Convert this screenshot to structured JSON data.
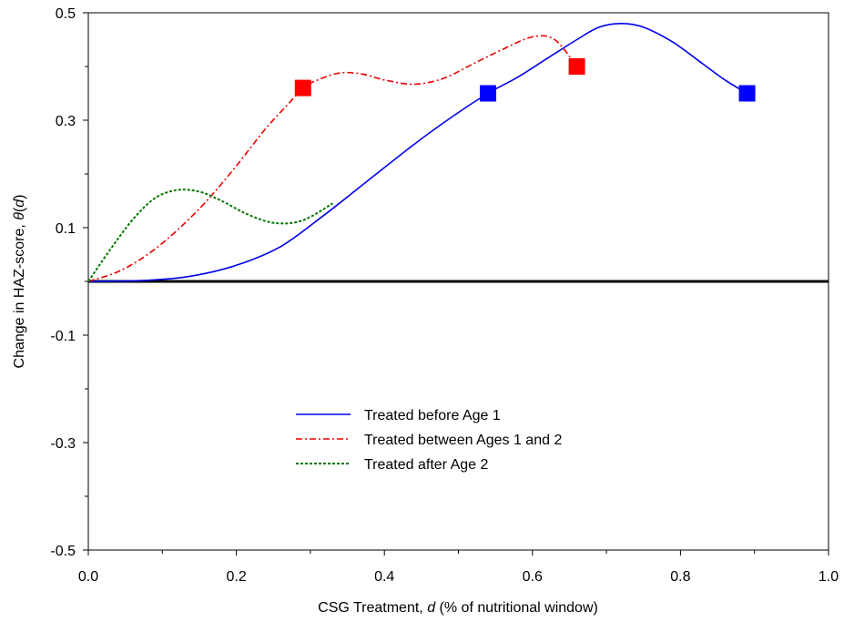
{
  "chart_data": {
    "type": "line",
    "xlabel_parts": [
      "CSG Treatment, ",
      "d",
      " (% of nutritional window)"
    ],
    "ylabel_parts": [
      "Change in HAZ-score, ",
      "θ",
      "(",
      "d",
      ")"
    ],
    "xlim": [
      0.0,
      1.0
    ],
    "ylim": [
      -0.5,
      0.5
    ],
    "x_ticks": [
      "0.0",
      "0.2",
      "0.4",
      "0.6",
      "0.8",
      "1.0"
    ],
    "y_ticks": [
      "0.5",
      "0.3",
      "0.1",
      "-0.1",
      "-0.3",
      "-0.5"
    ],
    "x_tick_values": [
      0.0,
      0.2,
      0.4,
      0.6,
      0.8,
      1.0
    ],
    "y_tick_values": [
      0.5,
      0.3,
      0.1,
      -0.1,
      -0.3,
      -0.5
    ],
    "reference_line_y": 0.0,
    "legend_position": "center",
    "series": [
      {
        "name": "Treated before Age 1",
        "color": "#0000ee",
        "dash": "solid",
        "points": [
          [
            0.0,
            0.0
          ],
          [
            0.08,
            0.002
          ],
          [
            0.14,
            0.01
          ],
          [
            0.2,
            0.03
          ],
          [
            0.26,
            0.065
          ],
          [
            0.32,
            0.125
          ],
          [
            0.38,
            0.19
          ],
          [
            0.44,
            0.255
          ],
          [
            0.49,
            0.305
          ],
          [
            0.54,
            0.35
          ],
          [
            0.58,
            0.38
          ],
          [
            0.62,
            0.415
          ],
          [
            0.66,
            0.45
          ],
          [
            0.69,
            0.473
          ],
          [
            0.72,
            0.48
          ],
          [
            0.75,
            0.473
          ],
          [
            0.79,
            0.445
          ],
          [
            0.83,
            0.405
          ],
          [
            0.86,
            0.375
          ],
          [
            0.89,
            0.35
          ]
        ],
        "markers": [
          [
            0.54,
            0.35
          ],
          [
            0.89,
            0.35
          ]
        ]
      },
      {
        "name": "Treated between Ages 1 and 2",
        "color": "#ee0000",
        "dash": "dashdot",
        "points": [
          [
            0.0,
            0.0
          ],
          [
            0.04,
            0.018
          ],
          [
            0.08,
            0.05
          ],
          [
            0.12,
            0.095
          ],
          [
            0.16,
            0.15
          ],
          [
            0.2,
            0.215
          ],
          [
            0.24,
            0.285
          ],
          [
            0.27,
            0.33
          ],
          [
            0.29,
            0.36
          ],
          [
            0.31,
            0.375
          ],
          [
            0.34,
            0.388
          ],
          [
            0.37,
            0.386
          ],
          [
            0.4,
            0.375
          ],
          [
            0.44,
            0.367
          ],
          [
            0.48,
            0.378
          ],
          [
            0.52,
            0.405
          ],
          [
            0.56,
            0.432
          ],
          [
            0.6,
            0.455
          ],
          [
            0.63,
            0.45
          ],
          [
            0.66,
            0.4
          ]
        ],
        "markers": [
          [
            0.29,
            0.36
          ],
          [
            0.66,
            0.4
          ]
        ]
      },
      {
        "name": "Treated after Age 2",
        "color": "#007700",
        "dash": "dotted",
        "points": [
          [
            0.0,
            0.0
          ],
          [
            0.03,
            0.06
          ],
          [
            0.06,
            0.115
          ],
          [
            0.09,
            0.155
          ],
          [
            0.12,
            0.17
          ],
          [
            0.15,
            0.167
          ],
          [
            0.18,
            0.15
          ],
          [
            0.21,
            0.128
          ],
          [
            0.24,
            0.112
          ],
          [
            0.26,
            0.108
          ],
          [
            0.28,
            0.11
          ],
          [
            0.3,
            0.12
          ],
          [
            0.33,
            0.145
          ]
        ],
        "markers": []
      }
    ]
  }
}
